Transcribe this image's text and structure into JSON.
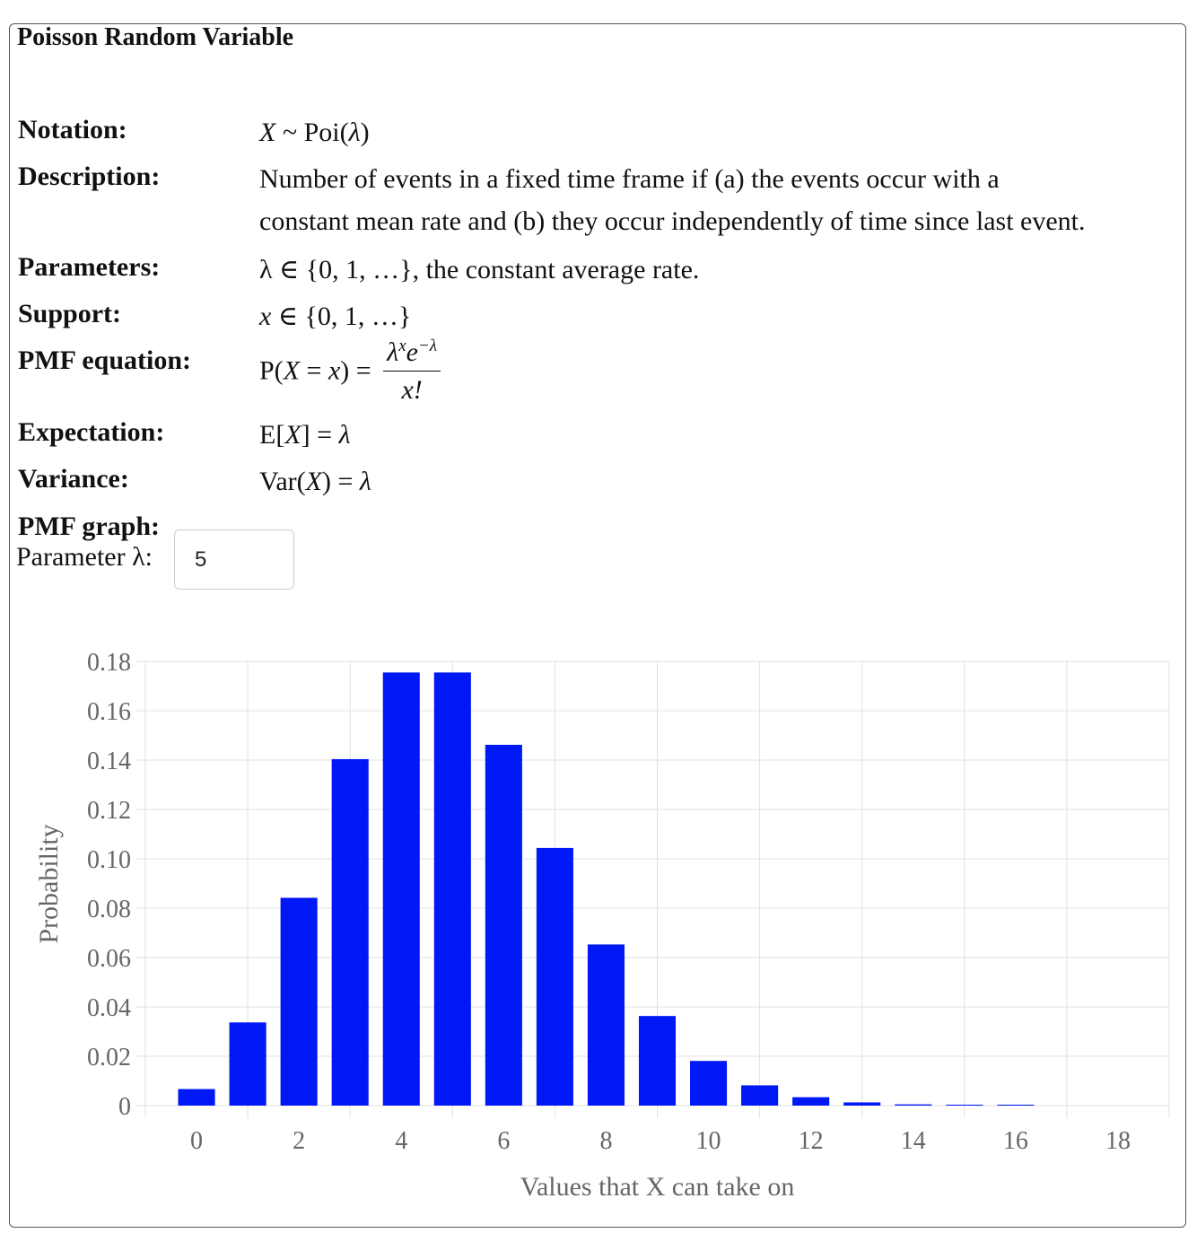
{
  "title": "Poisson Random Variable",
  "rows": {
    "notation": {
      "label": "Notation:",
      "x": "X",
      "sim": " ~ ",
      "poi": "Poi(",
      "lambda": "λ",
      "close": ")"
    },
    "description": {
      "label": "Description:",
      "line1": "Number of events in a fixed time frame if (a) the events occur with a",
      "line2": "constant mean rate and (b) they occur independently of time since last event."
    },
    "parameters": {
      "label": "Parameters:",
      "math": "λ ∈ {0, 1, …}",
      "text": ", the constant average rate."
    },
    "support": {
      "label": "Support:",
      "var": "x",
      "math": " ∈ {0, 1, …}"
    },
    "pmf": {
      "label": "PMF equation:",
      "lhs_open": "P(",
      "lhs_x": "X",
      "lhs_eq": " = ",
      "lhs_var": "x",
      "lhs_close": ") =",
      "num_base": "λ",
      "num_exp": "x",
      "num_e": "e",
      "num_e_exp": "−λ",
      "den": "x!"
    },
    "expectation": {
      "label": "Expectation:",
      "e_open": "E[",
      "x": "X",
      "e_close": "] = ",
      "lambda": "λ"
    },
    "variance": {
      "label": "Variance:",
      "var_open": "Var(",
      "x": "X",
      "var_close": ") = ",
      "lambda": "λ"
    },
    "pmf_graph": {
      "label": "PMF graph:"
    }
  },
  "parameter": {
    "label": "Parameter λ:",
    "value": "5"
  },
  "chart_data": {
    "type": "bar",
    "xlabel": "Values that X can take on",
    "ylabel": "Probability",
    "ylim": [
      0,
      0.18
    ],
    "yticks": [
      "0",
      "0.02",
      "0.04",
      "0.06",
      "0.08",
      "0.10",
      "0.12",
      "0.14",
      "0.16",
      "0.18"
    ],
    "xticks": [
      "0",
      "2",
      "4",
      "6",
      "8",
      "10",
      "12",
      "14",
      "16",
      "18"
    ],
    "categories": [
      0,
      1,
      2,
      3,
      4,
      5,
      6,
      7,
      8,
      9,
      10,
      11,
      12,
      13,
      14,
      15,
      16,
      17,
      18,
      19
    ],
    "values": [
      0.0067,
      0.0337,
      0.0842,
      0.1404,
      0.1755,
      0.1755,
      0.1462,
      0.1044,
      0.0653,
      0.0363,
      0.0181,
      0.0082,
      0.0034,
      0.0013,
      0.0005,
      0.0002,
      0.0001,
      0.0,
      0.0,
      0.0
    ],
    "bar_color": "#0018f5",
    "grid": true
  }
}
